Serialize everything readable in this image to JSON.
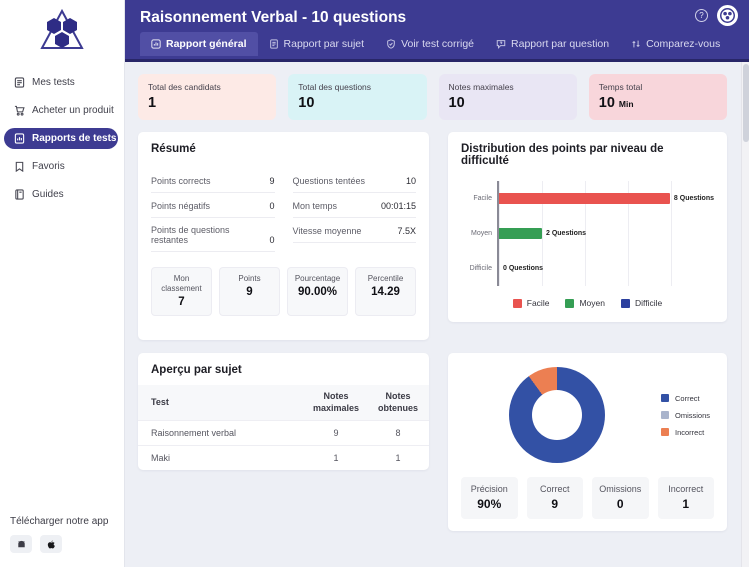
{
  "header": {
    "title": "Raisonnement Verbal - 10 questions",
    "tabs": [
      {
        "label": "Rapport général",
        "active": true
      },
      {
        "label": "Rapport par sujet",
        "active": false
      },
      {
        "label": "Voir test corrigé",
        "active": false
      },
      {
        "label": "Rapport par question",
        "active": false
      },
      {
        "label": "Comparez-vous",
        "active": false
      }
    ],
    "help_icon": "?"
  },
  "sidebar": {
    "items": [
      {
        "label": "Mes tests",
        "active": false
      },
      {
        "label": "Acheter un produit",
        "active": false
      },
      {
        "label": "Rapports de tests",
        "active": true
      },
      {
        "label": "Favoris",
        "active": false
      },
      {
        "label": "Guides",
        "active": false
      }
    ],
    "download_label": "Télécharger notre app"
  },
  "colors": {
    "brand": "#3d3b92",
    "active_tab": "#514fa5",
    "stat_card_bgs": [
      "#fdeae6",
      "#d9f3f6",
      "#e9e6f4",
      "#f8d6db"
    ]
  },
  "stat_cards": [
    {
      "label": "Total des candidats",
      "value": "1",
      "unit": ""
    },
    {
      "label": "Total des questions",
      "value": "10",
      "unit": ""
    },
    {
      "label": "Notes maximales",
      "value": "10",
      "unit": ""
    },
    {
      "label": "Temps total",
      "value": "10",
      "unit": "Min"
    }
  ],
  "resume": {
    "title": "Résumé",
    "rows_left": [
      {
        "label": "Points corrects",
        "value": "9"
      },
      {
        "label": "Points négatifs",
        "value": "0"
      },
      {
        "label": "Points de questions restantes",
        "value": "0"
      }
    ],
    "rows_right": [
      {
        "label": "Questions tentées",
        "value": "10"
      },
      {
        "label": "Mon temps",
        "value": "00:01:15"
      },
      {
        "label": "Vitesse moyenne",
        "value": "7.5X"
      }
    ],
    "boxes": [
      {
        "label": "Mon classement",
        "value": "7"
      },
      {
        "label": "Points",
        "value": "9"
      },
      {
        "label": "Pourcentage",
        "value": "90.00%"
      },
      {
        "label": "Percentile",
        "value": "14.29"
      }
    ]
  },
  "chart_data": [
    {
      "type": "bar",
      "orientation": "horizontal",
      "title": "Distribution des points par niveau de difficulté",
      "categories": [
        "Facile",
        "Moyen",
        "Difficile"
      ],
      "values": [
        8,
        2,
        0
      ],
      "data_labels": [
        "8 Questions",
        "2 Questions",
        "0 Questions"
      ],
      "colors": [
        "#e9534f",
        "#359e54",
        "#2b3f9e"
      ],
      "xlim": [
        0,
        10
      ],
      "grid": true,
      "legend": [
        "Facile",
        "Moyen",
        "Difficile"
      ],
      "legend_position": "bottom"
    },
    {
      "type": "pie",
      "donut": true,
      "labels": [
        "Correct",
        "Omissions",
        "Incorrect"
      ],
      "values": [
        9,
        0,
        1
      ],
      "colors": [
        "#3351a5",
        "#a9b4cc",
        "#ec7f52"
      ],
      "legend_position": "right"
    }
  ],
  "subject_table": {
    "title": "Aperçu par sujet",
    "columns": [
      "Test",
      "Notes maximales",
      "Notes obtenues"
    ],
    "rows": [
      {
        "test": "Raisonnement verbal",
        "max": "9",
        "obtained": "8"
      },
      {
        "test": "Maki",
        "max": "1",
        "obtained": "1"
      }
    ]
  },
  "donut_stats": [
    {
      "label": "Précision",
      "value": "90%"
    },
    {
      "label": "Correct",
      "value": "9"
    },
    {
      "label": "Omissions",
      "value": "0"
    },
    {
      "label": "Incorrect",
      "value": "1"
    }
  ]
}
